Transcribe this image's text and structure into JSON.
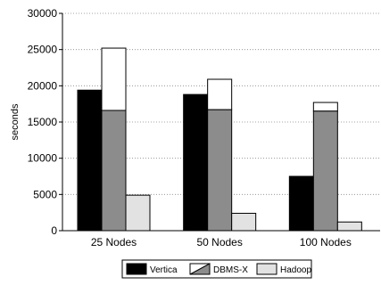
{
  "chart_data": {
    "type": "bar",
    "stacked_overlay": true,
    "ylabel": "seconds",
    "xlabel": "",
    "title": "",
    "ylim": [
      0,
      30000
    ],
    "yticks": [
      0,
      5000,
      10000,
      15000,
      20000,
      25000,
      30000
    ],
    "ytick_labels": [
      "0",
      "5000",
      "10000",
      "15000",
      "20000",
      "25000",
      "30000"
    ],
    "grid": "horizontal dotted",
    "legend_position": "bottom-center",
    "categories": [
      "25 Nodes",
      "50 Nodes",
      "100 Nodes"
    ],
    "series": [
      {
        "name": "Vertica",
        "values": [
          19400,
          18800,
          7500
        ],
        "color": "#000000",
        "pattern": "solid"
      },
      {
        "name": "DBMS-X",
        "values": [
          16600,
          16700,
          16500
        ],
        "total_values": [
          25200,
          20900,
          17700
        ],
        "color": "#8c8c8c",
        "pattern": "gray with white stacked top"
      },
      {
        "name": "Hadoop",
        "values": [
          4900,
          2400,
          1200
        ],
        "color": "#e2e2e2",
        "pattern": "light gray"
      }
    ]
  }
}
